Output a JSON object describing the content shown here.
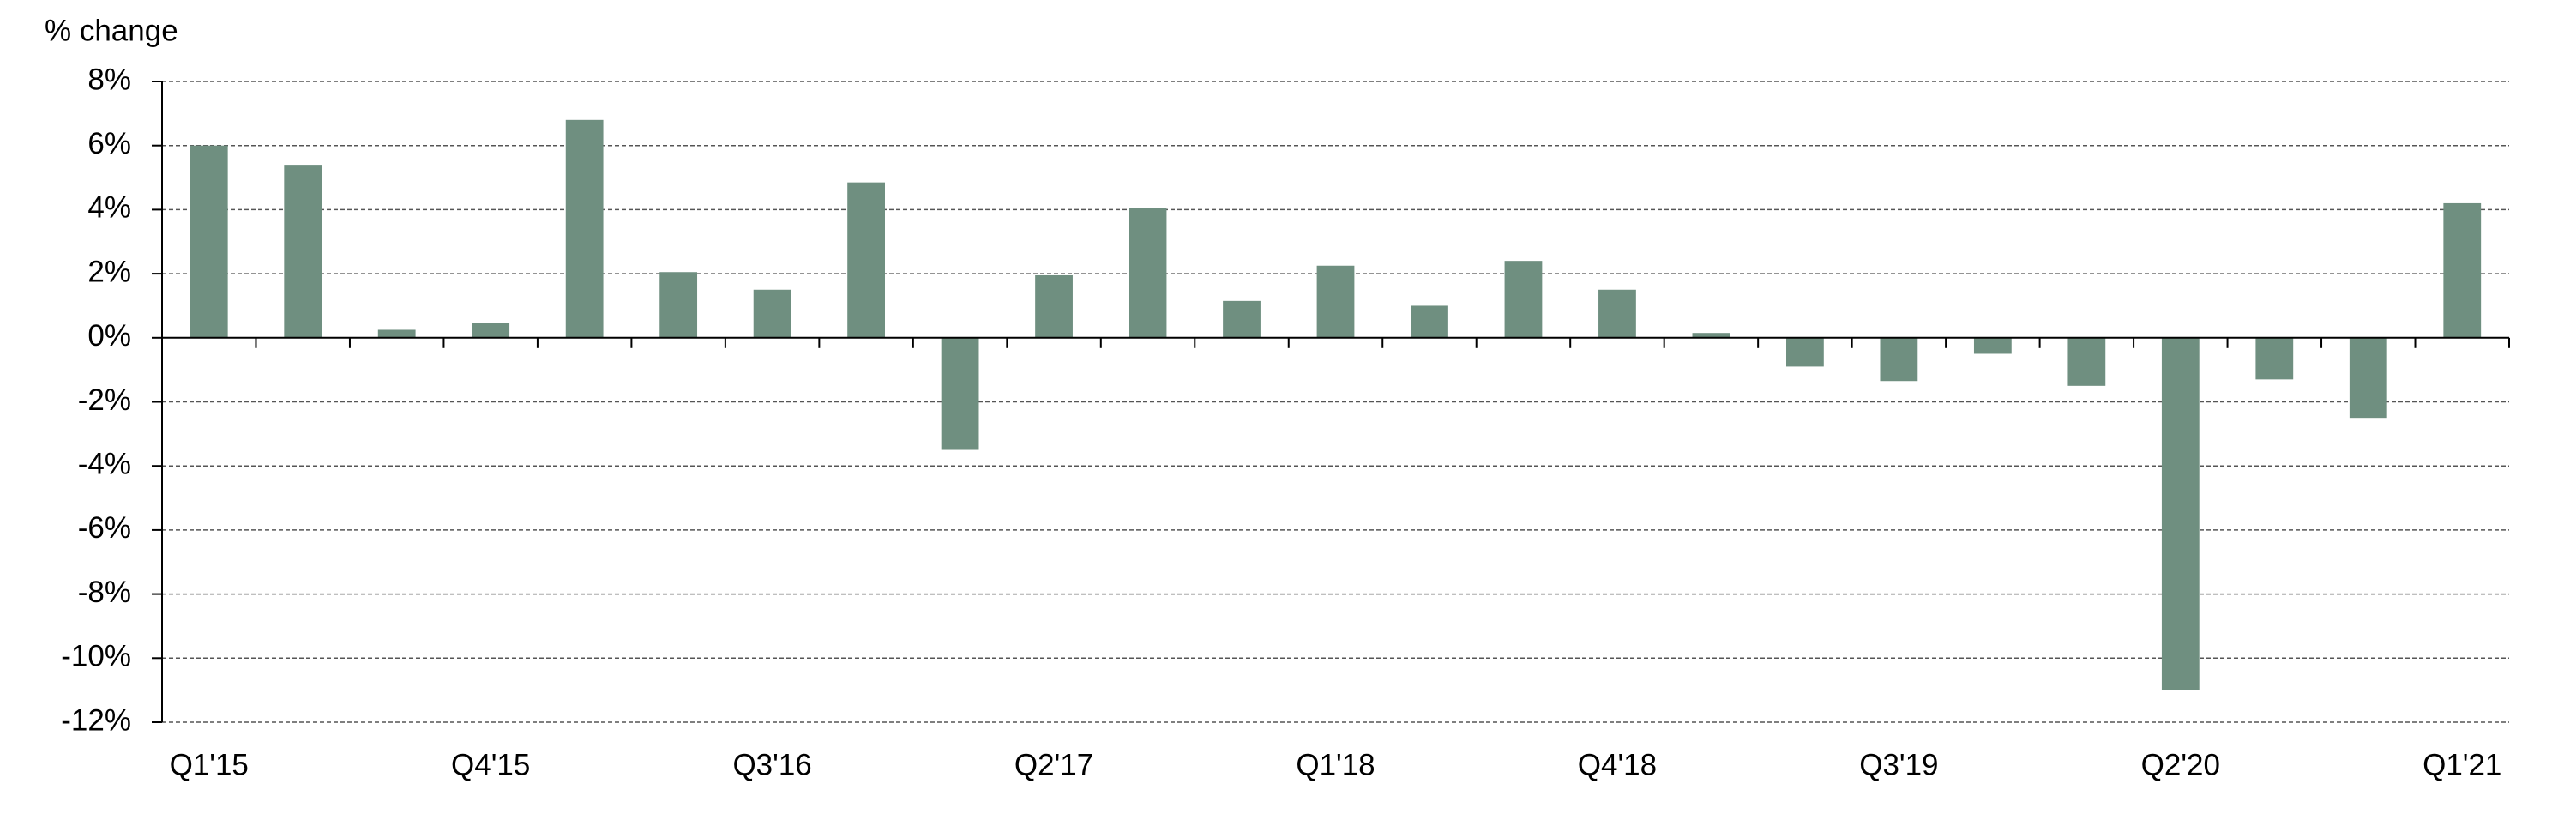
{
  "chart_data": {
    "type": "bar",
    "y_axis_label": "% change",
    "categories": [
      "Q1'15",
      null,
      null,
      "Q4'15",
      null,
      null,
      "Q3'16",
      null,
      null,
      "Q2'17",
      null,
      null,
      "Q1'18",
      null,
      null,
      "Q4'18",
      null,
      null,
      "Q3'19",
      null,
      null,
      "Q2'20",
      null,
      null,
      "Q1'21"
    ],
    "values": [
      6.0,
      5.4,
      0.25,
      0.45,
      6.8,
      2.05,
      1.5,
      4.85,
      -3.5,
      1.95,
      4.05,
      1.15,
      2.25,
      1.0,
      2.4,
      1.5,
      0.15,
      -0.9,
      -1.35,
      -0.5,
      -1.5,
      -11.0,
      -1.3,
      -2.5,
      4.2
    ],
    "color": "#6f8f80",
    "ylim": [
      -12,
      8
    ],
    "yticks": [
      {
        "value": -12,
        "label": "-12%"
      },
      {
        "value": -10,
        "label": "-10%"
      },
      {
        "value": -8,
        "label": "-8%"
      },
      {
        "value": -6,
        "label": "-6%"
      },
      {
        "value": -4,
        "label": "-4%"
      },
      {
        "value": -2,
        "label": "-2%"
      },
      {
        "value": 0,
        "label": "0%"
      },
      {
        "value": 2,
        "label": "2%"
      },
      {
        "value": 4,
        "label": "4%"
      },
      {
        "value": 6,
        "label": "6%"
      },
      {
        "value": 8,
        "label": "8%"
      }
    ],
    "grid": true
  }
}
